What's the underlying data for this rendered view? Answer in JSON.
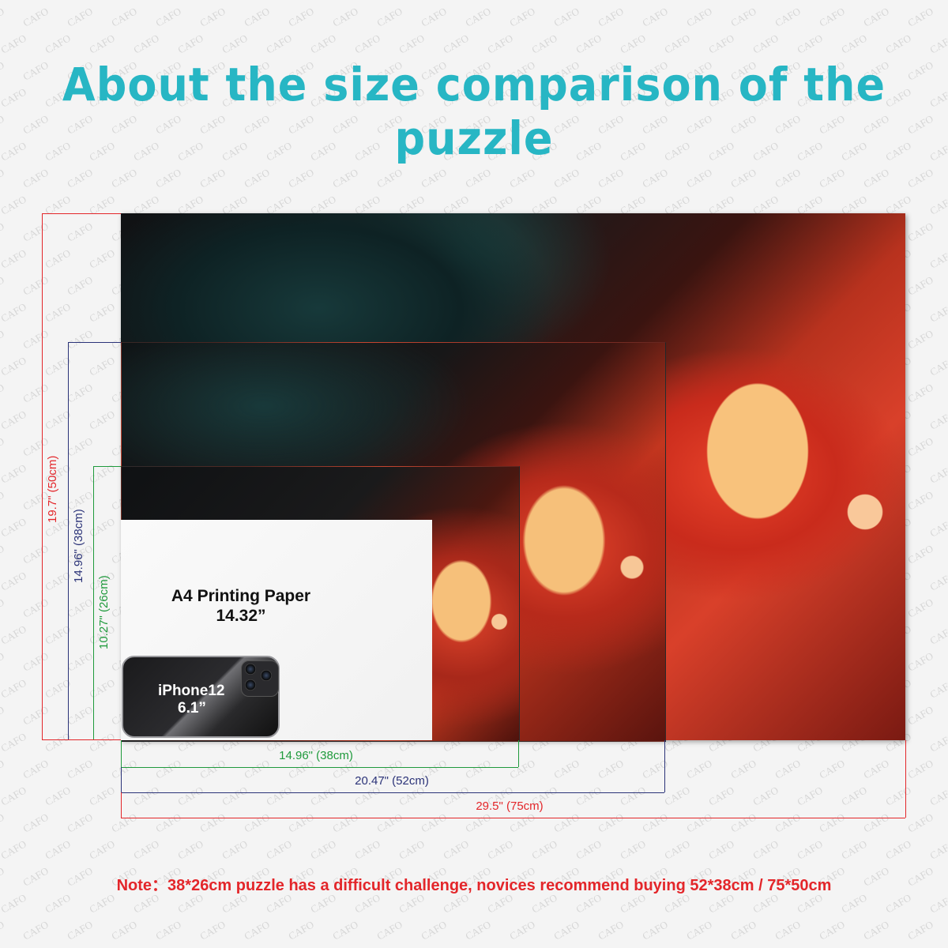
{
  "title": "About the size comparison of the puzzle",
  "watermark": "CAFO",
  "paper_label": {
    "line1": "A4 Printing Paper",
    "line2": "14.32”"
  },
  "phone_label": {
    "line1": "iPhone12",
    "line2": "6.1”"
  },
  "heights": {
    "large": "19.7\" (50cm)",
    "medium": "14.96\" (38cm)",
    "small": "10.27\" (26cm)"
  },
  "widths": {
    "small": "14.96\" (38cm)",
    "medium": "20.47\" (52cm)",
    "large": "29.5\" (75cm)"
  },
  "note": "Note：38*26cm puzzle has a difficult challenge, novices recommend buying 52*38cm / 75*50cm",
  "colors": {
    "title": "#27b6c4",
    "large_dim": "#e3262a",
    "medium_dim": "#2b3378",
    "small_dim": "#1f9a3c",
    "note": "#e3262a"
  }
}
